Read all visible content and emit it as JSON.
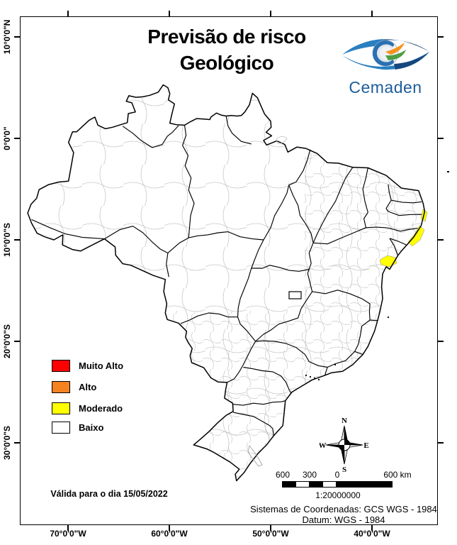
{
  "title": {
    "line1": "Previsão de risco",
    "line2": "Geológico"
  },
  "logo": {
    "name": "Cemaden"
  },
  "axes": {
    "x_labels": [
      "70°0'0\"W",
      "60°0'0\"W",
      "50°0'0\"W",
      "40°0'0\"W"
    ],
    "y_labels": [
      "10°0'0\"N",
      "0°0'0\"",
      "10°0'0\"S",
      "20°0'0\"S",
      "30°0'0\"S"
    ]
  },
  "legend": {
    "items": [
      {
        "label": "Muito Alto",
        "color": "#ff0000"
      },
      {
        "label": "Alto",
        "color": "#f58220"
      },
      {
        "label": "Moderado",
        "color": "#ffff00"
      },
      {
        "label": "Baixo",
        "color": "#ffffff"
      }
    ]
  },
  "validity_note": "Válida para o dia 15/05/2022",
  "compass": {
    "n": "N",
    "s": "S",
    "e": "E",
    "w": "W"
  },
  "scale_bar": {
    "tick_labels": [
      "600",
      "300",
      "0",
      "600 km"
    ],
    "ratio": "1:20000000"
  },
  "footer": {
    "line1": "Sistemas de Coordenadas: GCS WGS - 1984",
    "line2": "Datum: WGS - 1984"
  },
  "map": {
    "country": "Brasil",
    "highlight_level": "Moderado",
    "border_color": "#000000",
    "municipality_line_color": "#c8c8c8"
  }
}
